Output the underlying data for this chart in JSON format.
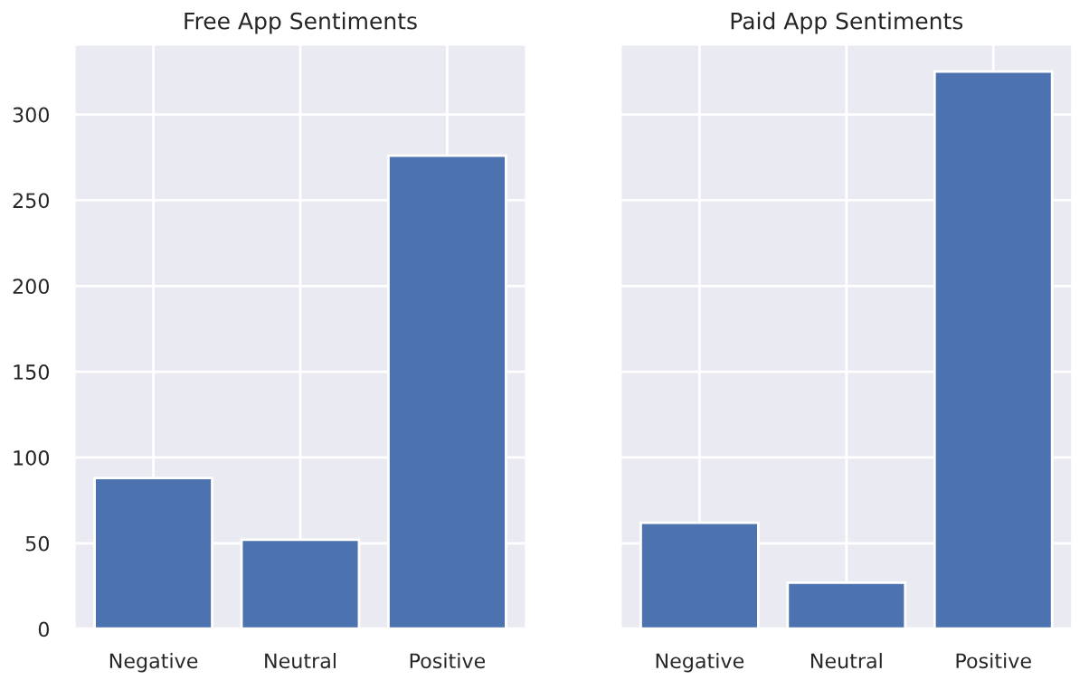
{
  "chart_data": [
    {
      "type": "bar",
      "title": "Free App Sentiments",
      "categories": [
        "Negative",
        "Neutral",
        "Positive"
      ],
      "values": [
        88,
        52,
        276
      ],
      "color": "#4c72b0",
      "ylim": [
        0,
        341
      ],
      "yticks": [
        0,
        50,
        100,
        150,
        200,
        250,
        300
      ],
      "grid": true
    },
    {
      "type": "bar",
      "title": "Paid App Sentiments",
      "categories": [
        "Negative",
        "Neutral",
        "Positive"
      ],
      "values": [
        62,
        27,
        325
      ],
      "color": "#4c72b0",
      "ylim": [
        0,
        341
      ],
      "yticks": [
        0,
        50,
        100,
        150,
        200,
        250,
        300
      ],
      "grid": true,
      "tick_labels": "x"
    }
  ]
}
